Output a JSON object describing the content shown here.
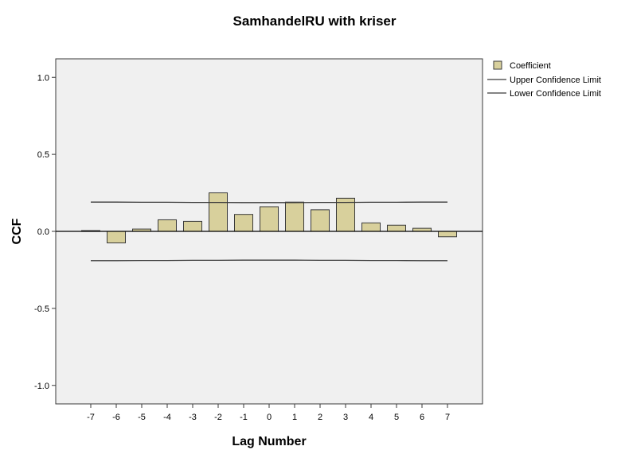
{
  "chart_data": {
    "type": "bar",
    "title": "SamhandelRU with kriser",
    "xlabel": "Lag Number",
    "ylabel": "CCF",
    "categories": [
      "-7",
      "-6",
      "-5",
      "-4",
      "-3",
      "-2",
      "-1",
      "0",
      "1",
      "2",
      "3",
      "4",
      "5",
      "6",
      "7"
    ],
    "series": [
      {
        "name": "Coefficient",
        "values": [
          0.005,
          -0.075,
          0.015,
          0.075,
          0.065,
          0.25,
          0.11,
          0.16,
          0.19,
          0.14,
          0.215,
          0.055,
          0.04,
          0.02,
          -0.035
        ]
      }
    ],
    "confidence_limits": {
      "upper": {
        "name": "Upper Confidence Limit",
        "values": [
          0.19,
          0.19,
          0.189,
          0.189,
          0.188,
          0.188,
          0.187,
          0.187,
          0.187,
          0.188,
          0.188,
          0.189,
          0.189,
          0.19,
          0.19
        ]
      },
      "lower": {
        "name": "Lower Confidence Limit",
        "values": [
          -0.19,
          -0.19,
          -0.189,
          -0.189,
          -0.188,
          -0.188,
          -0.187,
          -0.187,
          -0.187,
          -0.188,
          -0.188,
          -0.189,
          -0.189,
          -0.19,
          -0.19
        ]
      }
    },
    "ylim": [
      -1.12,
      1.12
    ],
    "yticks": [
      {
        "value": 1.0,
        "label": "1.0"
      },
      {
        "value": 0.5,
        "label": "0.5"
      },
      {
        "value": 0.0,
        "label": "0.0"
      },
      {
        "value": -0.5,
        "label": "-0.5"
      },
      {
        "value": -1.0,
        "label": "-1.0"
      }
    ],
    "grid": false,
    "legend_position": "top-right",
    "colors": {
      "bar_fill": "#d8d09c",
      "bar_stroke": "#3a3a3a",
      "plot_background": "#f0f0f0",
      "limit_line": "#3a3a3a"
    }
  }
}
